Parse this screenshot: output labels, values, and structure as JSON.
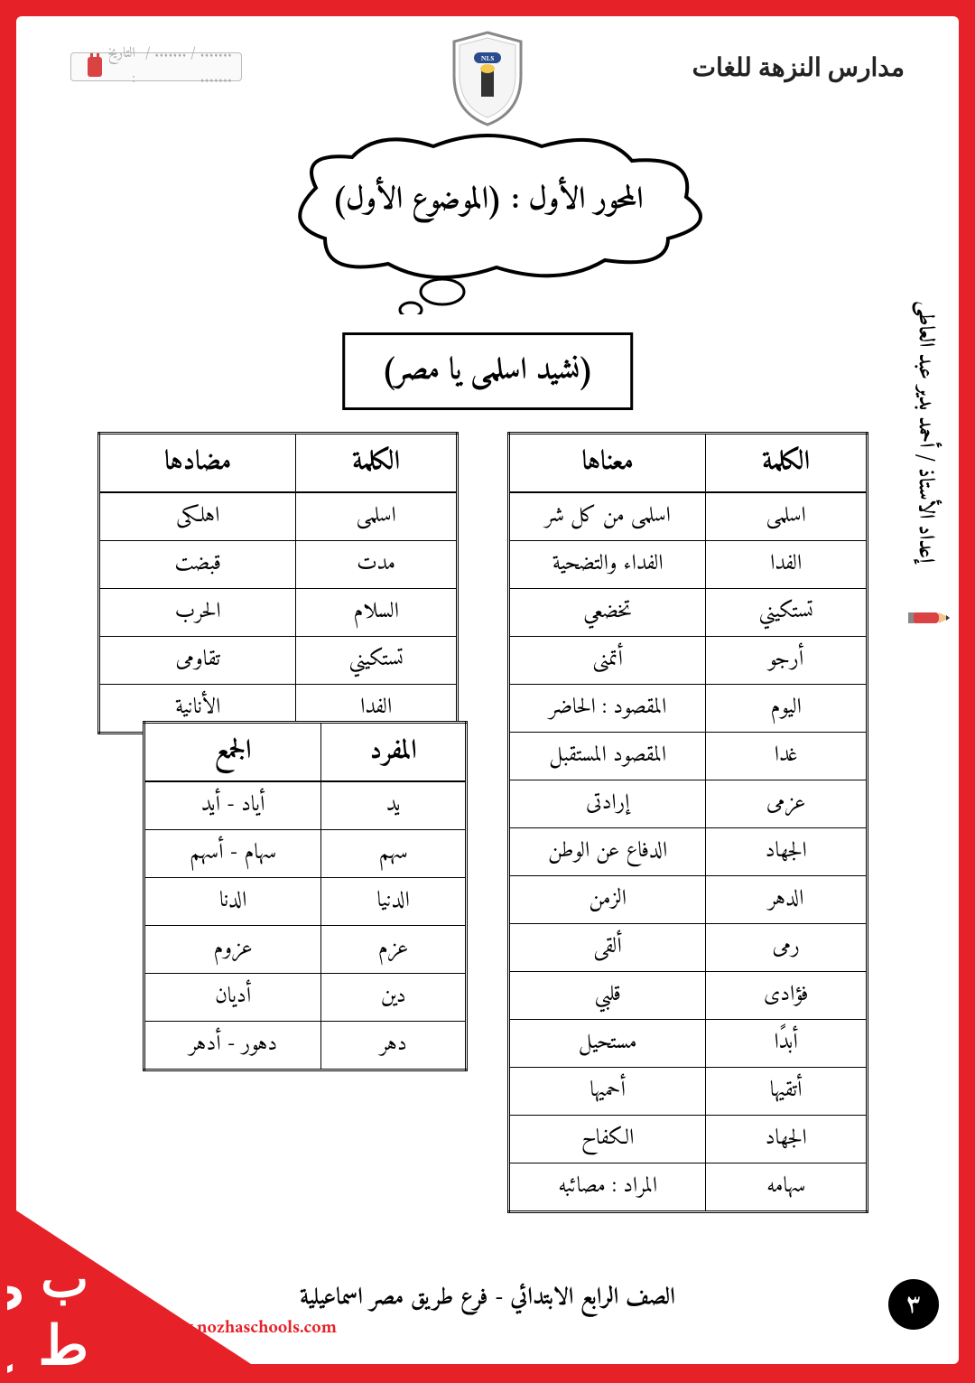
{
  "header": {
    "school_name": "مدارس النزهة للغات",
    "date_label": "التاريخ :",
    "date_slots": "....... / ....... / ......."
  },
  "cloud_title": "المحور الأول : (الموضوع الأول)",
  "subtitle": "(نشيد اسلمى يا مصر)",
  "author": "إعداد الأستاذ / أحمد بدير عبد العاطى",
  "tables": {
    "meanings": {
      "columns": [
        "الكلمة",
        "معناها"
      ],
      "rows": [
        [
          "اسلمى",
          "اسلمى من كل شر"
        ],
        [
          "الفدا",
          "الفداء والتضحية"
        ],
        [
          "تستكيني",
          "تخضعي"
        ],
        [
          "أرجو",
          "أتمنى"
        ],
        [
          "اليوم",
          "المقصود : الحاضر"
        ],
        [
          "غدا",
          "المقصود المستقبل"
        ],
        [
          "عزمى",
          "إرادتى"
        ],
        [
          "الجهاد",
          "الدفاع عن الوطن"
        ],
        [
          "الدهر",
          "الزمن"
        ],
        [
          "رمى",
          "ألقى"
        ],
        [
          "فؤادى",
          "قلبي"
        ],
        [
          "أبدًا",
          "مستحيل"
        ],
        [
          "أتقيها",
          "أحميها"
        ],
        [
          "الجهاد",
          "الكفاح"
        ],
        [
          "سهامه",
          "المراد : مصائبه"
        ]
      ]
    },
    "opposites": {
      "columns": [
        "الكلمة",
        "مضادها"
      ],
      "rows": [
        [
          "اسلمى",
          "اهلكى"
        ],
        [
          "مدت",
          "قبضت"
        ],
        [
          "السلام",
          "الحرب"
        ],
        [
          "تستكيني",
          "تقاومى"
        ],
        [
          "الفدا",
          "الأنانية"
        ]
      ]
    },
    "plural": {
      "columns": [
        "المفرد",
        "الجمع"
      ],
      "rows": [
        [
          "يد",
          "أياد - أيد"
        ],
        [
          "سهم",
          "سهام - أسهم"
        ],
        [
          "الدنيا",
          "الدنا"
        ],
        [
          "عزم",
          "عزوم"
        ],
        [
          "دين",
          "أديان"
        ],
        [
          "دهر",
          "دهور - أدهر"
        ]
      ]
    }
  },
  "footer": {
    "text": "الصف الرابع الابتدائي - فرع طريق مصر اسماعيلية",
    "page_number": "٣",
    "url": "www.nozhaschools.com"
  },
  "colors": {
    "red": "#e62128",
    "black": "#000000",
    "white": "#ffffff"
  }
}
